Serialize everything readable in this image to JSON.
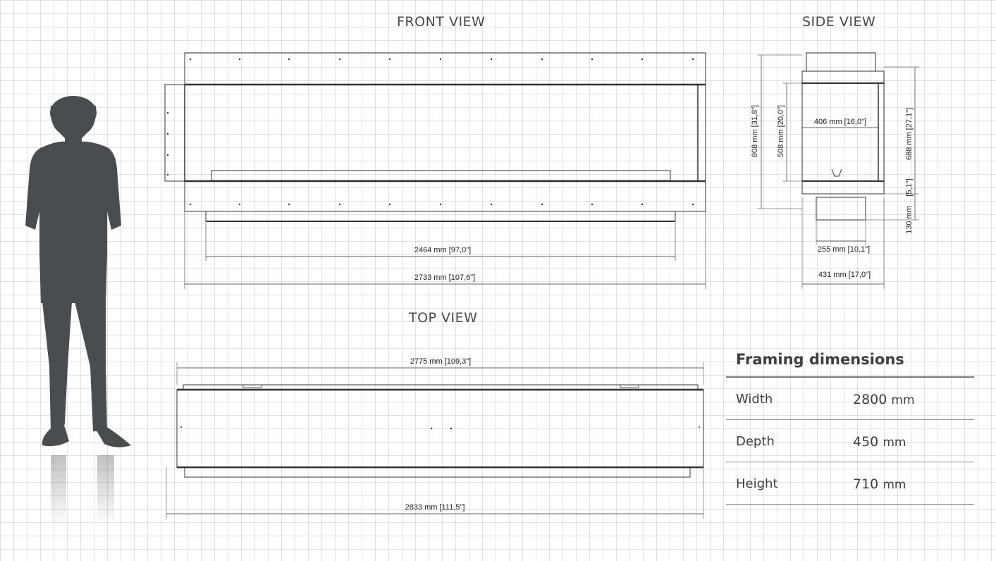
{
  "views": {
    "front": "FRONT VIEW",
    "side": "SIDE VIEW",
    "top": "TOP VIEW"
  },
  "front_dims": {
    "inner_width": "2464 mm [97,0\"]",
    "outer_width": "2733 mm [107,6\"]"
  },
  "side_dims": {
    "total_height": "808 mm [31,8\"]",
    "opening_height": "508 mm [20,0\"]",
    "opening_depth": "406 mm [16,0\"]",
    "right_height": "688 mm [27,1\"]",
    "small_height": "[5,1\"]",
    "bottom_height": "130 mm",
    "base_width": "255 mm [10,1\"]",
    "total_depth": "431 mm [17,0\"]"
  },
  "top_dims": {
    "top_width": "2775 mm [109,3\"]",
    "bottom_width": "2833 mm [111,5\"]"
  },
  "framing": {
    "title": "Framing dimensions",
    "rows": [
      {
        "label": "Width",
        "value": "2800",
        "unit": "mm"
      },
      {
        "label": "Depth",
        "value": "450",
        "unit": "mm"
      },
      {
        "label": "Height",
        "value": "710",
        "unit": "mm"
      }
    ]
  },
  "colors": {
    "silhouette": "#4a4d4f",
    "line": "#333333",
    "grid": "#bebebe"
  }
}
